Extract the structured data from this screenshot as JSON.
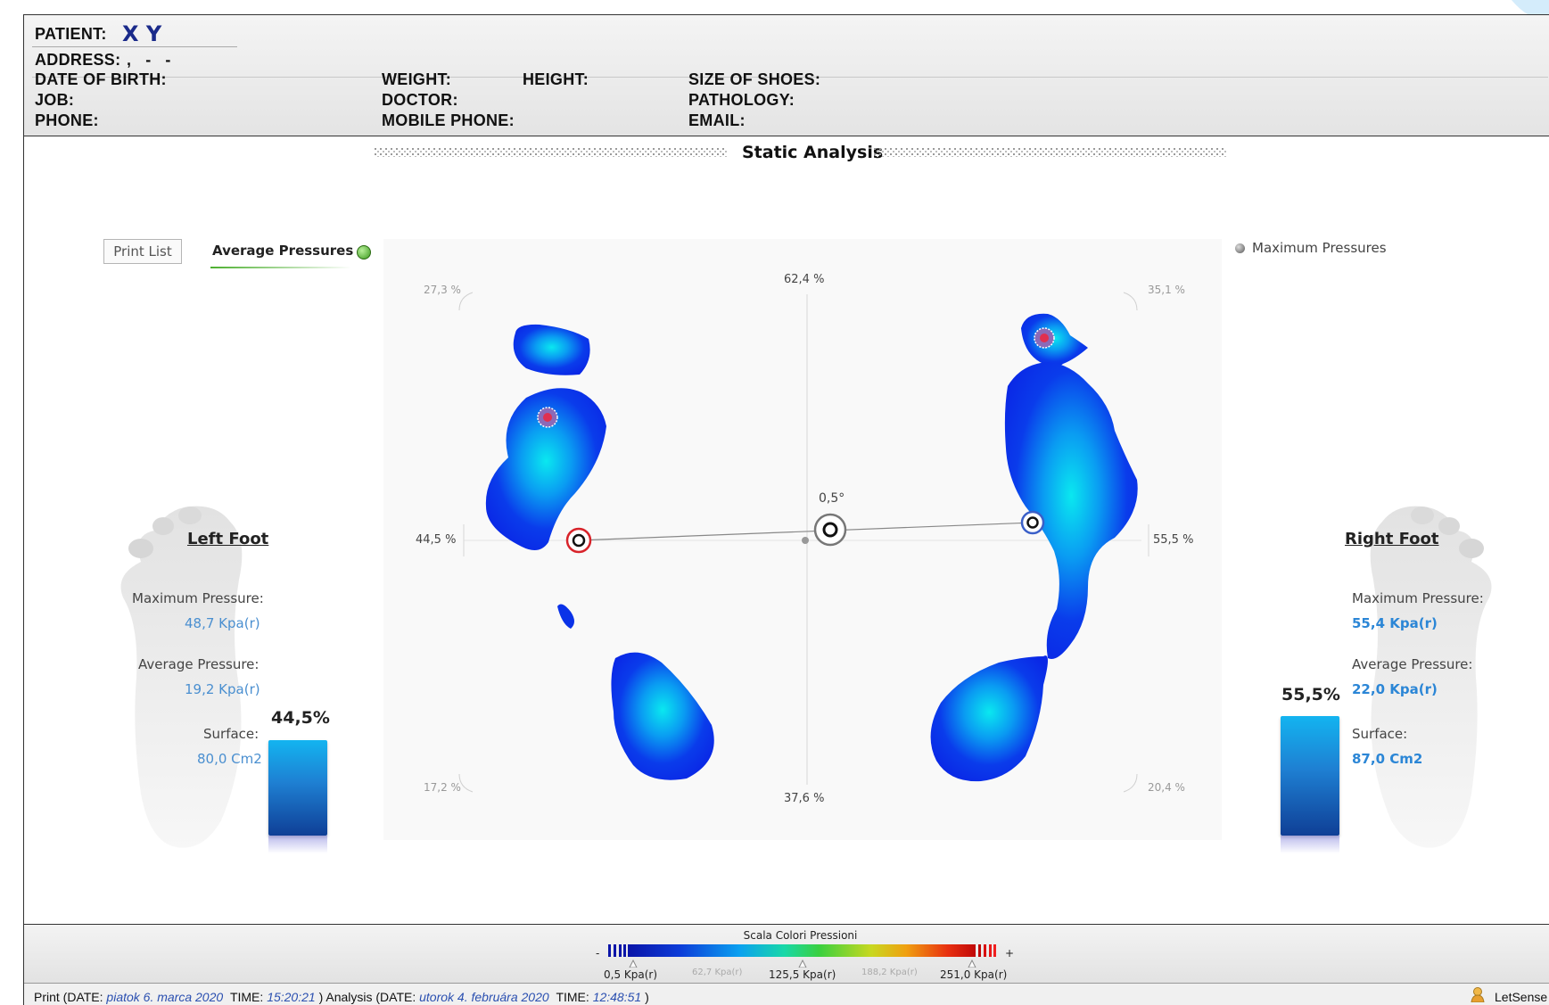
{
  "header": {
    "patient_label": "PATIENT:",
    "patient_value": "X Y",
    "address_label": "ADDRESS:",
    "address_value": ",   -   -",
    "dob_label": "DATE OF BIRTH:",
    "weight_label": "WEIGHT:",
    "height_label": "HEIGHT:",
    "shoes_label": "SIZE OF SHOES:",
    "job_label": "JOB:",
    "doctor_label": "DOCTOR:",
    "pathology_label": "PATHOLOGY:",
    "phone_label": "PHONE:",
    "mobile_label": "MOBILE PHONE:",
    "email_label": "EMAIL:"
  },
  "title": "Static Analysis",
  "tabs": {
    "print_list": "Print List",
    "average": "Average Pressures",
    "maximum": "Maximum Pressures"
  },
  "left_foot": {
    "title": "Left Foot",
    "max_label": "Maximum Pressure:",
    "max_value": "48,7 Kpa(r)",
    "avg_label": "Average Pressure:",
    "avg_value": "19,2 Kpa(r)",
    "surface_label": "Surface:",
    "surface_value": "80,0 Cm2",
    "load_percent": "44,5%",
    "load_fraction": 0.445
  },
  "right_foot": {
    "title": "Right Foot",
    "max_label": "Maximum Pressure:",
    "max_value": "55,4 Kpa(r)",
    "avg_label": "Average Pressure:",
    "avg_value": "22,0 Kpa(r)",
    "surface_label": "Surface:",
    "surface_value": "87,0 Cm2",
    "load_percent": "55,5%",
    "load_fraction": 0.555
  },
  "chart": {
    "top_left": "27,3 %",
    "top_center": "62,4 %",
    "top_right": "35,1 %",
    "mid_left": "44,5 %",
    "mid_right": "55,5 %",
    "bottom_left": "17,2 %",
    "bottom_center": "37,6 %",
    "bottom_right": "20,4 %",
    "angle": "0,5°"
  },
  "scale": {
    "title": "Scala Colori Pressioni",
    "minus": "-",
    "plus": "+",
    "ticks": [
      "0,5 Kpa(r)",
      "62,7 Kpa(r)",
      "125,5 Kpa(r)",
      "188,2 Kpa(r)",
      "251,0 Kpa(r)"
    ]
  },
  "status": {
    "print_prefix": "Print (DATE:",
    "print_date": "piatok 6. marca 2020",
    "time_label_1": "TIME:",
    "print_time": "15:20:21",
    "analysis_prefix": ") Analysis (DATE:",
    "analysis_date": "utorok 4. februára 2020",
    "time_label_2": "TIME:",
    "analysis_time": "12:48:51",
    "close": ")",
    "app_name": "LetSense"
  },
  "colors": {
    "accent": "#1a2a8a",
    "left_marker": "#d8232a",
    "right_marker": "#3a5fc8",
    "pressure_blue": "#0a28e6",
    "pressure_cyan": "#0ae8f0"
  }
}
